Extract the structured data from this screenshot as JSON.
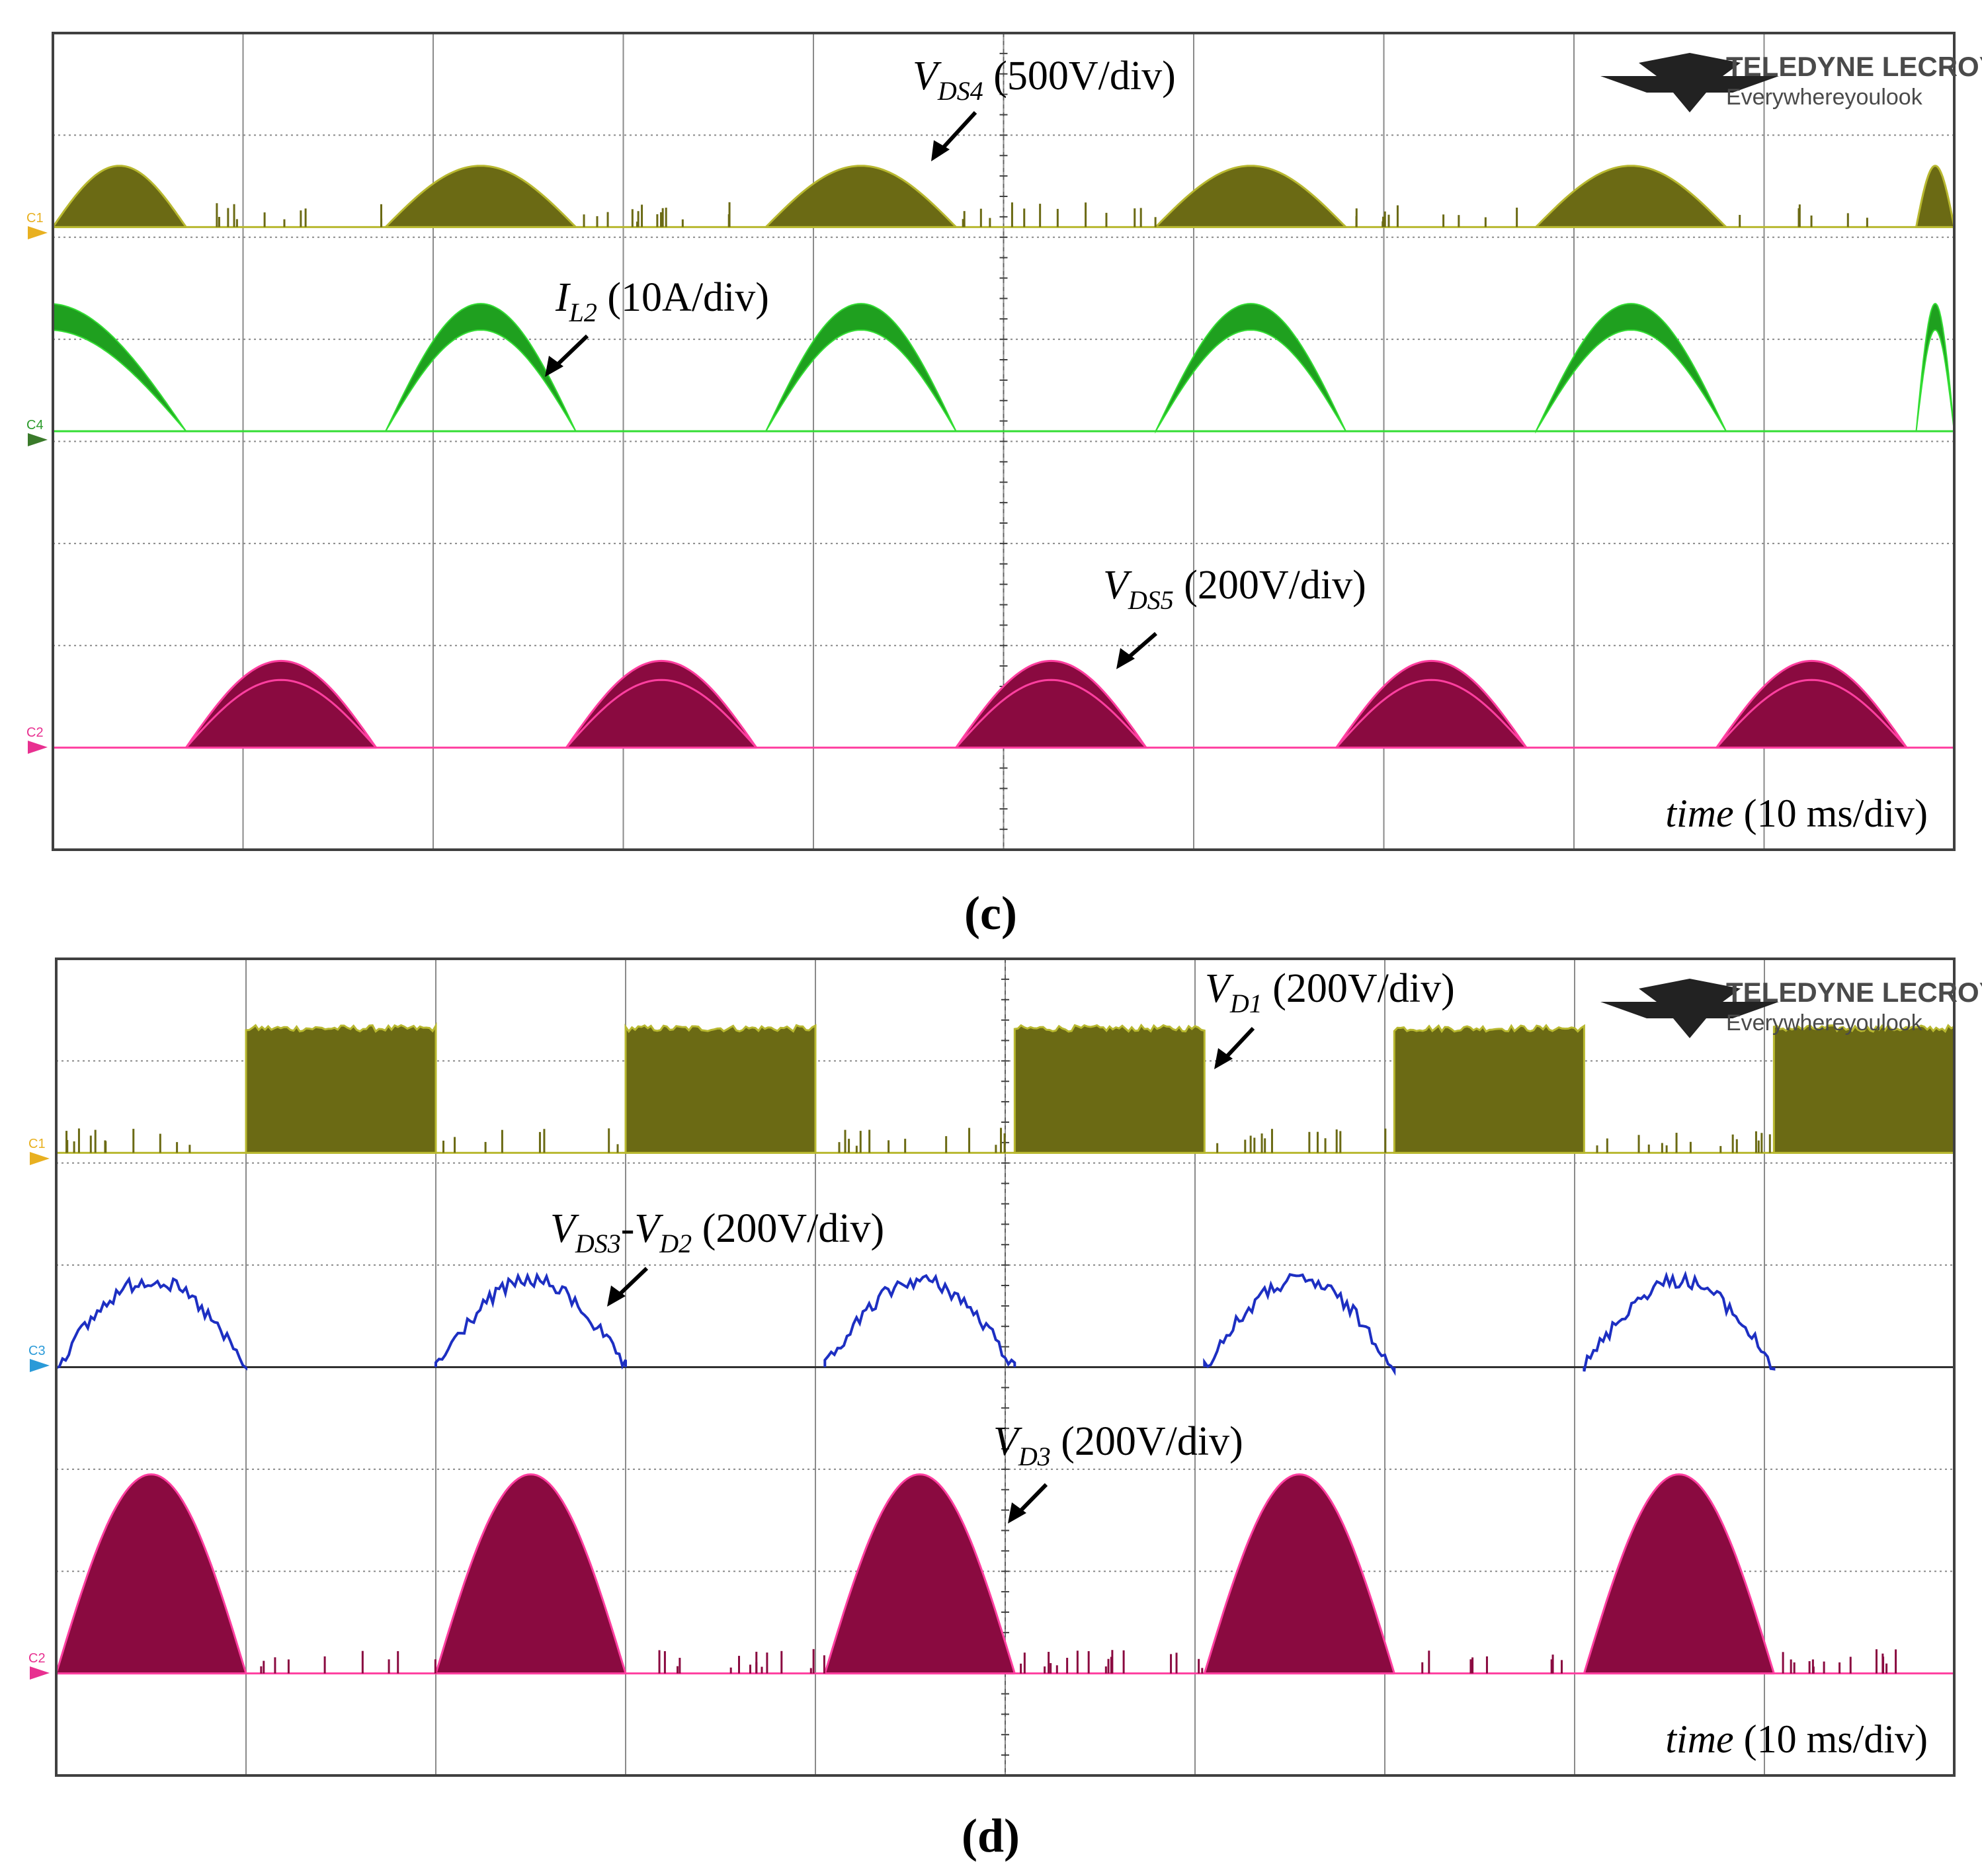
{
  "colors": {
    "ch1": "#6b6a14",
    "ch1_line": "#b8b830",
    "ch4": "#1fa01f",
    "ch4_line": "#33dd33",
    "ch2": "#8a0a40",
    "ch2_line": "#ff3fa0",
    "ch3": "#1d2fc2",
    "grid": "#8a8a8a",
    "frame": "#404040",
    "marker_c1": "#e8b020",
    "marker_c4": "#3a7a2a",
    "marker_c2": "#e83090",
    "marker_c3": "#2a9ad8"
  },
  "logo": {
    "name": "TELEDYNE LECROY",
    "tagline": "Everywhereyoulook"
  },
  "chart_data": [
    {
      "type": "line",
      "panel": "c",
      "caption": "(c)",
      "grid": true,
      "x_divisions": 10,
      "y_divisions": 8,
      "xlabel": "time (10 ms/div)",
      "xlabel_var": "time",
      "xlabel_unit": "(10 ms/div)",
      "x": [
        0,
        10,
        20,
        30,
        40,
        50,
        60,
        70,
        80,
        90,
        100
      ],
      "x_unit": "ms",
      "series": [
        {
          "name": "VDS4",
          "channel": "C1",
          "scale": "(500V/div)",
          "label_main": "V",
          "label_sub": "DS4",
          "shape": "filled-arch",
          "baseline_div": 6.1,
          "peak_div": 0.6,
          "on_windows_div": [
            [
              0.0,
              0.7
            ],
            [
              1.75,
              2.75
            ],
            [
              3.75,
              4.75
            ],
            [
              5.8,
              6.8
            ],
            [
              7.8,
              8.8
            ],
            [
              9.8,
              10.0
            ]
          ],
          "off_level_div": 0.05
        },
        {
          "name": "IL2",
          "channel": "C4",
          "scale": "(10A/div)",
          "label_main": "I",
          "label_sub": "L2",
          "shape": "arch",
          "baseline_div": 4.1,
          "peak_div": 1.25,
          "on_windows_div": [
            [
              -0.75,
              0.7
            ],
            [
              1.75,
              2.75
            ],
            [
              3.75,
              4.75
            ],
            [
              5.8,
              6.8
            ],
            [
              7.8,
              8.8
            ],
            [
              9.8,
              10.0
            ]
          ]
        },
        {
          "name": "VDS5",
          "channel": "C2",
          "scale": "(200V/div)",
          "label_main": "V",
          "label_sub": "DS5",
          "shape": "noisy-arch",
          "baseline_div": 1.0,
          "peak_div": 0.85,
          "on_windows_div": [
            [
              0.7,
              1.7
            ],
            [
              2.7,
              3.7
            ],
            [
              4.75,
              5.75
            ],
            [
              6.75,
              7.75
            ],
            [
              8.75,
              9.75
            ]
          ]
        }
      ]
    },
    {
      "type": "line",
      "panel": "d",
      "caption": "(d)",
      "grid": true,
      "x_divisions": 10,
      "y_divisions": 8,
      "xlabel": "time (10 ms/div)",
      "xlabel_var": "time",
      "xlabel_unit": "(10 ms/div)",
      "x": [
        0,
        10,
        20,
        30,
        40,
        50,
        60,
        70,
        80,
        90,
        100
      ],
      "x_unit": "ms",
      "series": [
        {
          "name": "VD1",
          "channel": "C1",
          "scale": "(200V/div)",
          "label_main": "V",
          "label_sub": "D1",
          "shape": "filled-block",
          "baseline_div": 6.1,
          "peak_div": 1.25,
          "on_windows_div": [
            [
              1.0,
              2.0
            ],
            [
              3.0,
              4.0
            ],
            [
              5.05,
              6.05
            ],
            [
              7.05,
              8.05
            ],
            [
              9.05,
              10.0
            ]
          ]
        },
        {
          "name": "VDS3-VD2",
          "channel": "C3",
          "scale": "(200V/div)",
          "label_main": "V",
          "label_sub": "DS3",
          "label_main2": "V",
          "label_sub2": "D2",
          "shape": "line-arch",
          "baseline_div": 4.0,
          "peak_div": 0.85,
          "on_windows_div": [
            [
              0.0,
              1.0
            ],
            [
              2.0,
              3.0
            ],
            [
              4.05,
              5.05
            ],
            [
              6.05,
              7.05
            ],
            [
              8.05,
              9.05
            ]
          ]
        },
        {
          "name": "VD3",
          "channel": "C2",
          "scale": "(200V/div)",
          "label_main": "V",
          "label_sub": "D3",
          "shape": "filled-arch",
          "baseline_div": 1.0,
          "peak_div": 1.95,
          "on_windows_div": [
            [
              0.0,
              1.0
            ],
            [
              2.0,
              3.0
            ],
            [
              4.05,
              5.05
            ],
            [
              6.05,
              7.05
            ],
            [
              8.05,
              9.05
            ]
          ]
        }
      ]
    }
  ]
}
